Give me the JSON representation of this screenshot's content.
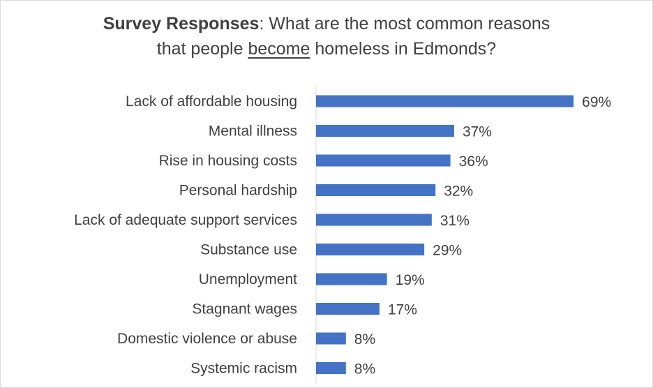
{
  "chart_data": {
    "type": "bar",
    "orientation": "horizontal",
    "title_bold": "Survey Responses",
    "title_rest_1": ": What are the most common reasons",
    "title_line2_pre": "that people ",
    "title_line2_underlined": "become",
    "title_line2_post": " homeless in Edmonds?",
    "categories": [
      "Lack of affordable housing",
      "Mental illness",
      "Rise in housing costs",
      "Personal hardship",
      "Lack of adequate support services",
      "Substance use",
      "Unemployment",
      "Stagnant wages",
      "Domestic violence or abuse",
      "Systemic racism"
    ],
    "values": [
      69,
      37,
      36,
      32,
      31,
      29,
      19,
      17,
      8,
      8
    ],
    "value_labels": [
      "69%",
      "37%",
      "36%",
      "32%",
      "31%",
      "29%",
      "19%",
      "17%",
      "8%",
      "8%"
    ],
    "unit": "%",
    "xlim": [
      0,
      100
    ],
    "bar_color": "#4472c4",
    "axis_color": "#d9d9d9",
    "grid": false,
    "legend": "none"
  }
}
